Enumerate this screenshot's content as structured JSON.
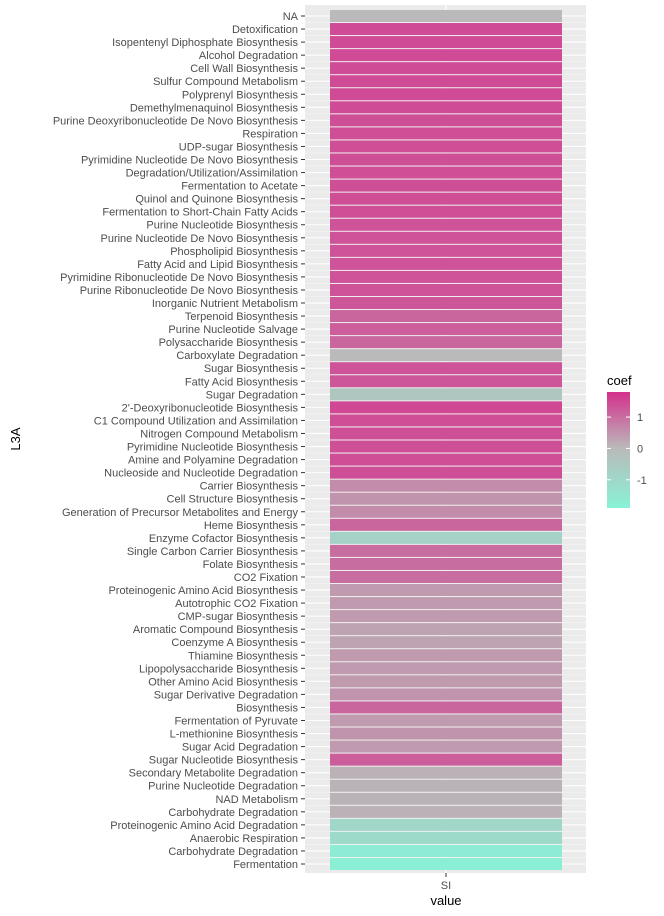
{
  "chart_data": {
    "type": "heatmap",
    "xlabel": "value",
    "ylabel": "L3A",
    "x_categories": [
      "SI"
    ],
    "legend": {
      "title": "coef",
      "ticks": [
        1,
        0,
        -1
      ],
      "range": [
        -1.9,
        1.8
      ],
      "low_color": "#88f2d6",
      "mid_color": "#bababa",
      "high_color": "#d4308c"
    },
    "rows": [
      {
        "label": "NA",
        "value": 0.0
      },
      {
        "label": "Detoxification",
        "value": 1.45
      },
      {
        "label": "Isopentenyl Diphosphate Biosynthesis",
        "value": 1.45
      },
      {
        "label": "Alcohol Degradation",
        "value": 1.45
      },
      {
        "label": "Cell Wall Biosynthesis",
        "value": 1.45
      },
      {
        "label": "Sulfur Compound Metabolism",
        "value": 1.45
      },
      {
        "label": "Polyprenyl Biosynthesis",
        "value": 1.45
      },
      {
        "label": "Demethylmenaquinol Biosynthesis",
        "value": 1.45
      },
      {
        "label": "Purine Deoxyribonucleotide De Novo Biosynthesis",
        "value": 1.4
      },
      {
        "label": "Respiration",
        "value": 1.4
      },
      {
        "label": "UDP-sugar Biosynthesis",
        "value": 1.4
      },
      {
        "label": "Pyrimidine Nucleotide De Novo Biosynthesis",
        "value": 1.4
      },
      {
        "label": "Degradation/Utilization/Assimilation",
        "value": 1.4
      },
      {
        "label": "Fermentation to Acetate",
        "value": 1.4
      },
      {
        "label": "Quinol and Quinone Biosynthesis",
        "value": 1.4
      },
      {
        "label": "Fermentation to Short-Chain Fatty Acids",
        "value": 1.4
      },
      {
        "label": "Purine Nucleotide Biosynthesis",
        "value": 1.35
      },
      {
        "label": "Purine Nucleotide De Novo Biosynthesis",
        "value": 1.35
      },
      {
        "label": "Phospholipid Biosynthesis",
        "value": 1.35
      },
      {
        "label": "Fatty Acid and Lipid Biosynthesis",
        "value": 1.35
      },
      {
        "label": "Pyrimidine Ribonucleotide De Novo Biosynthesis",
        "value": 1.35
      },
      {
        "label": "Purine Ribonucleotide De Novo Biosynthesis",
        "value": 1.35
      },
      {
        "label": "Inorganic Nutrient Metabolism",
        "value": 1.3
      },
      {
        "label": "Terpenoid Biosynthesis",
        "value": 1.1
      },
      {
        "label": "Purine Nucleotide Salvage",
        "value": 1.2
      },
      {
        "label": "Polysaccharide Biosynthesis",
        "value": 1.1
      },
      {
        "label": "Carboxylate Degradation",
        "value": 0.0
      },
      {
        "label": "Sugar Biosynthesis",
        "value": 1.35
      },
      {
        "label": "Fatty Acid Biosynthesis",
        "value": 1.3
      },
      {
        "label": "Sugar Degradation",
        "value": -0.4
      },
      {
        "label": "2'-Deoxyribonucleotide Biosynthesis",
        "value": 1.5
      },
      {
        "label": "C1 Compound Utilization and Assimilation",
        "value": 1.4
      },
      {
        "label": "Nitrogen Compound Metabolism",
        "value": 1.4
      },
      {
        "label": "Pyrimidine Nucleotide Biosynthesis",
        "value": 1.4
      },
      {
        "label": "Amine and Polyamine Degradation",
        "value": 1.4
      },
      {
        "label": "Nucleoside and Nucleotide Degradation",
        "value": 1.4
      },
      {
        "label": "Carrier Biosynthesis",
        "value": 0.6
      },
      {
        "label": "Cell Structure Biosynthesis",
        "value": 0.5
      },
      {
        "label": "Generation of Precursor Metabolites and Energy",
        "value": 0.6
      },
      {
        "label": "Heme Biosynthesis",
        "value": 1.1
      },
      {
        "label": "Enzyme Cofactor Biosynthesis",
        "value": -0.8
      },
      {
        "label": "Single Carbon Carrier Biosynthesis",
        "value": 1.0
      },
      {
        "label": "Folate Biosynthesis",
        "value": 1.0
      },
      {
        "label": "CO2 Fixation",
        "value": 1.0
      },
      {
        "label": "Proteinogenic Amino Acid Biosynthesis",
        "value": 0.4
      },
      {
        "label": "Autotrophic CO2 Fixation",
        "value": 0.4
      },
      {
        "label": "CMP-sugar Biosynthesis",
        "value": 0.4
      },
      {
        "label": "Aromatic Compound Biosynthesis",
        "value": 0.3
      },
      {
        "label": "Coenzyme A Biosynthesis",
        "value": 0.3
      },
      {
        "label": "Thiamine Biosynthesis",
        "value": 0.4
      },
      {
        "label": "Lipopolysaccharide Biosynthesis",
        "value": 0.4
      },
      {
        "label": "Other Amino Acid Biosynthesis",
        "value": 0.4
      },
      {
        "label": "Sugar Derivative Degradation",
        "value": 0.5
      },
      {
        "label": "Biosynthesis",
        "value": 1.1
      },
      {
        "label": "Fermentation of Pyruvate",
        "value": 0.4
      },
      {
        "label": "L-methionine Biosynthesis",
        "value": 0.5
      },
      {
        "label": "Sugar Acid Degradation",
        "value": 0.4
      },
      {
        "label": "Sugar Nucleotide Biosynthesis",
        "value": 1.2
      },
      {
        "label": "Secondary Metabolite Degradation",
        "value": 0.1
      },
      {
        "label": "Purine Nucleotide Degradation",
        "value": 0.1
      },
      {
        "label": "NAD Metabolism",
        "value": 0.1
      },
      {
        "label": "Carbohydrate Degradation ",
        "value": 0.1
      },
      {
        "label": "Proteinogenic Amino Acid Degradation",
        "value": -1.0
      },
      {
        "label": "Anaerobic Respiration",
        "value": -1.1
      },
      {
        "label": "Carbohydrate Degradation",
        "value": -1.7
      },
      {
        "label": "Fermentation",
        "value": -1.8
      }
    ]
  }
}
